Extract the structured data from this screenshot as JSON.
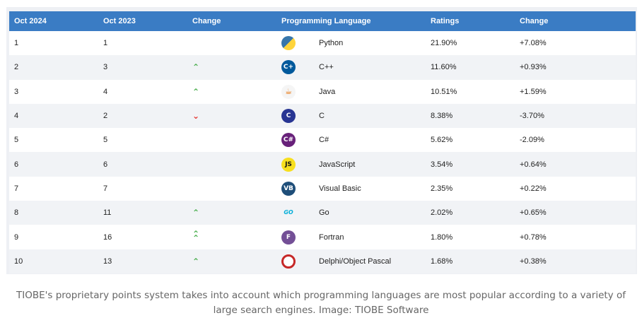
{
  "table": {
    "headers": [
      "Oct 2024",
      "Oct 2023",
      "Change",
      "Programming Language",
      "Ratings",
      "Change"
    ],
    "rows": [
      {
        "rank_2024": "1",
        "rank_2023": "1",
        "trend": "",
        "icon": "python-icon",
        "icon_color": "#3776ab",
        "icon_text": "",
        "language": "Python",
        "rating": "21.90%",
        "change": "+7.08%"
      },
      {
        "rank_2024": "2",
        "rank_2023": "3",
        "trend": "up",
        "icon": "cpp-icon",
        "icon_color": "#00599c",
        "icon_text": "C+",
        "language": "C++",
        "rating": "11.60%",
        "change": "+0.93%"
      },
      {
        "rank_2024": "3",
        "rank_2023": "4",
        "trend": "up",
        "icon": "java-icon",
        "icon_color": "#f5f5f5",
        "icon_text": "",
        "language": "Java",
        "rating": "10.51%",
        "change": "+1.59%"
      },
      {
        "rank_2024": "4",
        "rank_2023": "2",
        "trend": "down",
        "icon": "c-icon",
        "icon_color": "#283593",
        "icon_text": "C",
        "language": "C",
        "rating": "8.38%",
        "change": "-3.70%"
      },
      {
        "rank_2024": "5",
        "rank_2023": "5",
        "trend": "",
        "icon": "csharp-icon",
        "icon_color": "#68217a",
        "icon_text": "C#",
        "language": "C#",
        "rating": "5.62%",
        "change": "-2.09%"
      },
      {
        "rank_2024": "6",
        "rank_2023": "6",
        "trend": "",
        "icon": "javascript-icon",
        "icon_color": "#f7df1e",
        "icon_text": "JS",
        "language": "JavaScript",
        "rating": "3.54%",
        "change": "+0.64%"
      },
      {
        "rank_2024": "7",
        "rank_2023": "7",
        "trend": "",
        "icon": "visual-basic-icon",
        "icon_color": "#1e4e79",
        "icon_text": "VB",
        "language": "Visual Basic",
        "rating": "2.35%",
        "change": "+0.22%"
      },
      {
        "rank_2024": "8",
        "rank_2023": "11",
        "trend": "up",
        "icon": "go-icon",
        "icon_color": "#00add8",
        "icon_text": "GO",
        "language": "Go",
        "rating": "2.02%",
        "change": "+0.65%"
      },
      {
        "rank_2024": "9",
        "rank_2023": "16",
        "trend": "double-up",
        "icon": "fortran-icon",
        "icon_color": "#734f96",
        "icon_text": "F",
        "language": "Fortran",
        "rating": "1.80%",
        "change": "+0.78%"
      },
      {
        "rank_2024": "10",
        "rank_2023": "13",
        "trend": "up",
        "icon": "delphi-icon",
        "icon_color": "#c62828",
        "icon_text": "",
        "language": "Delphi/Object Pascal",
        "rating": "1.68%",
        "change": "+0.38%"
      }
    ]
  },
  "caption": "TIOBE's proprietary points system takes into account which programming languages are most popular according to a variety of large search engines. Image: TIOBE Software",
  "colors": {
    "header_bg": "#3a7cc4",
    "up": "#4caf50",
    "down": "#e53935"
  }
}
